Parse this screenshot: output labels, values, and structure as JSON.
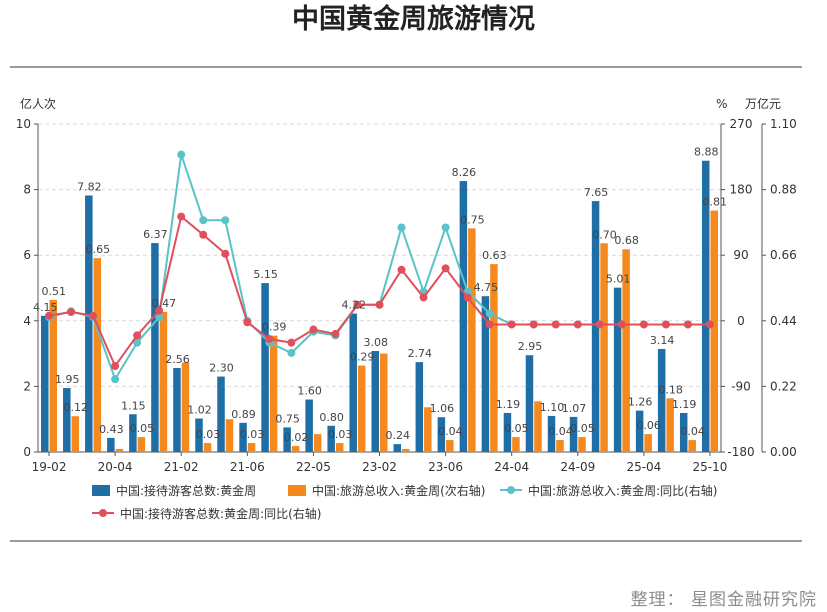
{
  "title": "中国黄金周旅游情况",
  "source": "整理：  星图金融研究院",
  "chart_data": {
    "type": "bar",
    "title": "中国黄金周旅游情况",
    "units": {
      "left": "亿人次",
      "right_pct": "%",
      "right_money": "万亿元"
    },
    "left_axis": {
      "min": 0,
      "max": 10,
      "ticks": [
        "0",
        "2",
        "4",
        "6",
        "8",
        "10"
      ]
    },
    "pct_axis": {
      "min": -180,
      "max": 270,
      "ticks": [
        "-180",
        "-90",
        "0",
        "90",
        "180",
        "270"
      ]
    },
    "money_axis": {
      "min": 0,
      "max": 1.1,
      "ticks": [
        "0.00",
        "0.22",
        "0.44",
        "0.66",
        "0.88",
        "1.10"
      ]
    },
    "x_tick_labels": [
      {
        "i": 0,
        "label": "19-02"
      },
      {
        "i": 3,
        "label": "20-04"
      },
      {
        "i": 6,
        "label": "21-02"
      },
      {
        "i": 9,
        "label": "21-06"
      },
      {
        "i": 12,
        "label": "22-05"
      },
      {
        "i": 15,
        "label": "23-02"
      },
      {
        "i": 18,
        "label": "23-06"
      },
      {
        "i": 21,
        "label": "24-04"
      },
      {
        "i": 24,
        "label": "24-09"
      },
      {
        "i": 27,
        "label": "25-04"
      },
      {
        "i": 30,
        "label": "25-10"
      }
    ],
    "series": [
      {
        "name": "中国:接待游客总数:黄金周",
        "type": "bar",
        "axis": "left",
        "color": "#1f6ea6",
        "values": [
          4.15,
          1.95,
          7.82,
          0.43,
          1.15,
          6.37,
          2.56,
          1.02,
          2.3,
          0.89,
          5.15,
          0.75,
          1.6,
          0.8,
          4.22,
          3.08,
          0.24,
          2.74,
          1.06,
          8.26,
          4.75,
          1.19,
          2.95,
          1.1,
          1.07,
          7.65,
          5.01,
          1.26,
          3.14,
          1.19,
          8.88
        ],
        "labels": [
          "4.15",
          "1.95",
          "7.82",
          "0.43",
          "1.15",
          "6.37",
          "2.56",
          "1.02",
          "2.30",
          "0.89",
          "5.15",
          "0.75",
          "1.60",
          "0.80",
          "4.22",
          "3.08",
          "0.24",
          "2.74",
          "1.06",
          "8.26",
          "4.75",
          "1.19",
          "2.95",
          "1.10",
          "1.07",
          "7.65",
          "5.01",
          "1.26",
          "3.14",
          "1.19",
          "8.88"
        ]
      },
      {
        "name": "中国:旅游总收入:黄金周(次右轴)",
        "type": "bar",
        "axis": "money",
        "color": "#f5891e",
        "values": [
          0.51,
          0.12,
          0.65,
          0.01,
          0.05,
          0.47,
          0.3,
          0.03,
          0.11,
          0.03,
          0.39,
          0.02,
          0.06,
          0.03,
          0.29,
          0.33,
          0.01,
          0.15,
          0.04,
          0.75,
          0.63,
          0.05,
          0.17,
          0.04,
          0.05,
          0.7,
          0.68,
          0.06,
          0.18,
          0.04,
          0.81
        ],
        "labels": [
          "0.51",
          "0.12",
          "0.65",
          "",
          "0.05",
          "0.47",
          "",
          "0.03",
          "",
          "0.03",
          "0.39",
          "0.02",
          "",
          "0.03",
          "0.29",
          "",
          "",
          "",
          "0.04",
          "0.75",
          "0.63",
          "0.05",
          "",
          "0.04",
          "0.05",
          "0.70",
          "0.68",
          "0.06",
          "0.18",
          "0.04",
          "0.81"
        ]
      },
      {
        "name": "中国:旅游总收入:黄金周:同比(右轴)",
        "type": "line",
        "axis": "pct",
        "color": "#5bc2c7",
        "values": [
          5,
          13,
          5,
          -80,
          -30,
          5,
          228,
          138,
          138,
          0,
          -30,
          -44,
          -15,
          -20,
          22,
          22,
          128,
          40,
          128,
          40,
          10,
          -5,
          -5,
          -5,
          -5,
          -5,
          -5,
          -5,
          -5,
          -5,
          -5
        ]
      },
      {
        "name": "中国:接待游客总数:黄金周:同比(右轴)",
        "type": "line",
        "axis": "pct",
        "color": "#e0505c",
        "values": [
          7,
          12,
          7,
          -62,
          -20,
          14,
          143,
          118,
          92,
          -2,
          -25,
          -30,
          -12,
          -18,
          22,
          22,
          70,
          32,
          72,
          32,
          -5,
          -5,
          -5,
          -5,
          -5,
          -5,
          -5,
          -5,
          -5,
          -5,
          -5
        ]
      }
    ],
    "legend_position": "bottom"
  }
}
